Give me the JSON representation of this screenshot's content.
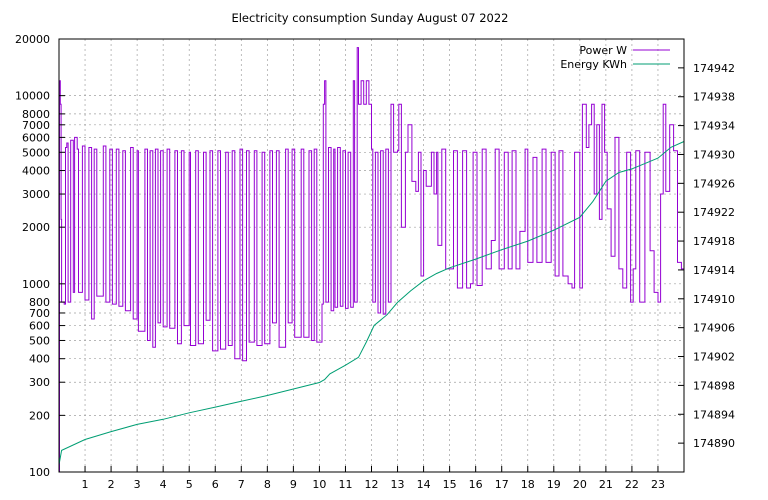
{
  "chart_data": {
    "type": "line",
    "title": "Electricity consumption Sunday August 07 2022",
    "xlabel": "",
    "ylabel": "",
    "y2label": "",
    "xlim": [
      0,
      24
    ],
    "ylim": [
      100,
      20000
    ],
    "y_scale": "log",
    "y2lim": [
      174886,
      174946
    ],
    "grid": true,
    "legend_position": "top-right",
    "x_ticks": [
      1,
      2,
      3,
      4,
      5,
      6,
      7,
      8,
      9,
      10,
      11,
      12,
      13,
      14,
      15,
      16,
      17,
      18,
      19,
      20,
      21,
      22,
      23
    ],
    "y_ticks": [
      100,
      200,
      300,
      400,
      500,
      600,
      700,
      800,
      1000,
      2000,
      3000,
      4000,
      5000,
      6000,
      7000,
      8000,
      10000,
      20000
    ],
    "y2_ticks": [
      174890,
      174894,
      174898,
      174902,
      174906,
      174910,
      174914,
      174918,
      174922,
      174926,
      174930,
      174934,
      174938,
      174942
    ],
    "colors": {
      "power": "#9400d3",
      "energy": "#009e73"
    },
    "series": [
      {
        "name": "Power W",
        "axis": "left",
        "points": [
          [
            0.0,
            100
          ],
          [
            0.02,
            12000
          ],
          [
            0.05,
            9000
          ],
          [
            0.08,
            2200
          ],
          [
            0.1,
            800
          ],
          [
            0.2,
            780
          ],
          [
            0.25,
            5300
          ],
          [
            0.3,
            5600
          ],
          [
            0.35,
            800
          ],
          [
            0.45,
            5800
          ],
          [
            0.55,
            900
          ],
          [
            0.6,
            6000
          ],
          [
            0.7,
            5200
          ],
          [
            0.75,
            900
          ],
          [
            0.9,
            5400
          ],
          [
            1.0,
            820
          ],
          [
            1.15,
            5300
          ],
          [
            1.25,
            650
          ],
          [
            1.35,
            5200
          ],
          [
            1.45,
            860
          ],
          [
            1.7,
            5400
          ],
          [
            1.8,
            800
          ],
          [
            1.95,
            5200
          ],
          [
            2.05,
            780
          ],
          [
            2.2,
            5200
          ],
          [
            2.3,
            760
          ],
          [
            2.45,
            5100
          ],
          [
            2.55,
            720
          ],
          [
            2.75,
            5300
          ],
          [
            2.85,
            650
          ],
          [
            3.0,
            5100
          ],
          [
            3.05,
            560
          ],
          [
            3.3,
            5200
          ],
          [
            3.4,
            500
          ],
          [
            3.5,
            5100
          ],
          [
            3.6,
            460
          ],
          [
            3.7,
            5200
          ],
          [
            3.8,
            620
          ],
          [
            3.9,
            5100
          ],
          [
            4.0,
            590
          ],
          [
            4.15,
            5200
          ],
          [
            4.25,
            580
          ],
          [
            4.45,
            5100
          ],
          [
            4.55,
            480
          ],
          [
            4.7,
            5100
          ],
          [
            4.8,
            600
          ],
          [
            5.0,
            5000
          ],
          [
            5.05,
            470
          ],
          [
            5.25,
            5100
          ],
          [
            5.35,
            480
          ],
          [
            5.55,
            5000
          ],
          [
            5.65,
            640
          ],
          [
            5.8,
            5100
          ],
          [
            5.9,
            440
          ],
          [
            6.1,
            5100
          ],
          [
            6.2,
            450
          ],
          [
            6.4,
            5000
          ],
          [
            6.5,
            470
          ],
          [
            6.65,
            5100
          ],
          [
            6.75,
            400
          ],
          [
            6.95,
            5200
          ],
          [
            7.05,
            390
          ],
          [
            7.2,
            5100
          ],
          [
            7.3,
            490
          ],
          [
            7.5,
            5100
          ],
          [
            7.6,
            470
          ],
          [
            7.8,
            5000
          ],
          [
            7.9,
            480
          ],
          [
            8.1,
            5100
          ],
          [
            8.2,
            620
          ],
          [
            8.35,
            5100
          ],
          [
            8.45,
            460
          ],
          [
            8.7,
            5200
          ],
          [
            8.8,
            620
          ],
          [
            8.95,
            5200
          ],
          [
            9.05,
            520
          ],
          [
            9.3,
            5200
          ],
          [
            9.4,
            520
          ],
          [
            9.6,
            5100
          ],
          [
            9.7,
            500
          ],
          [
            9.8,
            5200
          ],
          [
            9.9,
            490
          ],
          [
            10.1,
            780
          ],
          [
            10.15,
            9000
          ],
          [
            10.2,
            12000
          ],
          [
            10.25,
            800
          ],
          [
            10.35,
            5300
          ],
          [
            10.45,
            720
          ],
          [
            10.55,
            5200
          ],
          [
            10.6,
            750
          ],
          [
            10.7,
            5300
          ],
          [
            10.8,
            760
          ],
          [
            10.9,
            5100
          ],
          [
            11.0,
            740
          ],
          [
            11.1,
            5000
          ],
          [
            11.2,
            750
          ],
          [
            11.3,
            12000
          ],
          [
            11.35,
            800
          ],
          [
            11.45,
            18000
          ],
          [
            11.5,
            9000
          ],
          [
            11.6,
            12000
          ],
          [
            11.7,
            9000
          ],
          [
            11.8,
            12000
          ],
          [
            11.9,
            9000
          ],
          [
            12.0,
            5200
          ],
          [
            12.05,
            800
          ],
          [
            12.15,
            5000
          ],
          [
            12.25,
            700
          ],
          [
            12.35,
            5100
          ],
          [
            12.45,
            690
          ],
          [
            12.55,
            5200
          ],
          [
            12.65,
            800
          ],
          [
            12.75,
            9000
          ],
          [
            12.85,
            5000
          ],
          [
            13.0,
            5100
          ],
          [
            13.05,
            9000
          ],
          [
            13.15,
            2000
          ],
          [
            13.3,
            5000
          ],
          [
            13.4,
            7000
          ],
          [
            13.55,
            3500
          ],
          [
            13.7,
            3100
          ],
          [
            13.8,
            5000
          ],
          [
            13.9,
            1100
          ],
          [
            14.0,
            4000
          ],
          [
            14.1,
            3300
          ],
          [
            14.3,
            5000
          ],
          [
            14.4,
            3000
          ],
          [
            14.5,
            5000
          ],
          [
            14.55,
            1600
          ],
          [
            14.7,
            5200
          ],
          [
            14.85,
            1200
          ],
          [
            15.0,
            1200
          ],
          [
            15.15,
            5100
          ],
          [
            15.3,
            950
          ],
          [
            15.5,
            5100
          ],
          [
            15.65,
            950
          ],
          [
            15.8,
            1000
          ],
          [
            15.9,
            5000
          ],
          [
            16.05,
            980
          ],
          [
            16.25,
            5200
          ],
          [
            16.4,
            1200
          ],
          [
            16.6,
            1700
          ],
          [
            16.75,
            5200
          ],
          [
            16.9,
            1200
          ],
          [
            17.1,
            5000
          ],
          [
            17.25,
            1200
          ],
          [
            17.4,
            5100
          ],
          [
            17.55,
            1200
          ],
          [
            17.7,
            1900
          ],
          [
            17.9,
            5200
          ],
          [
            18.0,
            1300
          ],
          [
            18.2,
            4700
          ],
          [
            18.35,
            1300
          ],
          [
            18.55,
            5200
          ],
          [
            18.7,
            1300
          ],
          [
            18.9,
            5000
          ],
          [
            19.05,
            1100
          ],
          [
            19.2,
            5100
          ],
          [
            19.35,
            1100
          ],
          [
            19.55,
            1000
          ],
          [
            19.7,
            950
          ],
          [
            19.8,
            5000
          ],
          [
            20.0,
            950
          ],
          [
            20.1,
            9000
          ],
          [
            20.25,
            5300
          ],
          [
            20.35,
            7000
          ],
          [
            20.45,
            9000
          ],
          [
            20.55,
            3000
          ],
          [
            20.65,
            7000
          ],
          [
            20.75,
            2200
          ],
          [
            20.85,
            9000
          ],
          [
            20.95,
            5000
          ],
          [
            21.05,
            2500
          ],
          [
            21.2,
            1400
          ],
          [
            21.35,
            6000
          ],
          [
            21.5,
            1200
          ],
          [
            21.65,
            950
          ],
          [
            21.8,
            5000
          ],
          [
            21.95,
            800
          ],
          [
            22.05,
            1200
          ],
          [
            22.15,
            5100
          ],
          [
            22.3,
            800
          ],
          [
            22.5,
            5000
          ],
          [
            22.7,
            1500
          ],
          [
            22.85,
            900
          ],
          [
            23.0,
            800
          ],
          [
            23.1,
            3000
          ],
          [
            23.2,
            9000
          ],
          [
            23.3,
            3100
          ],
          [
            23.45,
            7000
          ],
          [
            23.6,
            5100
          ],
          [
            23.75,
            1300
          ],
          [
            23.9,
            1200
          ],
          [
            24.0,
            1200
          ]
        ]
      },
      {
        "name": "Energy KWh",
        "axis": "right",
        "points": [
          [
            0.0,
            174887.0
          ],
          [
            0.1,
            174889.0
          ],
          [
            1.0,
            174890.5
          ],
          [
            2.0,
            174891.6
          ],
          [
            3.0,
            174892.6
          ],
          [
            4.0,
            174893.3
          ],
          [
            5.0,
            174894.2
          ],
          [
            6.0,
            174895.0
          ],
          [
            7.0,
            174895.8
          ],
          [
            8.0,
            174896.6
          ],
          [
            9.0,
            174897.5
          ],
          [
            10.0,
            174898.4
          ],
          [
            10.2,
            174898.8
          ],
          [
            10.4,
            174899.6
          ],
          [
            11.0,
            174900.8
          ],
          [
            11.5,
            174901.9
          ],
          [
            11.8,
            174904.0
          ],
          [
            12.1,
            174906.3
          ],
          [
            12.6,
            174907.8
          ],
          [
            13.0,
            174909.5
          ],
          [
            13.5,
            174911.1
          ],
          [
            14.0,
            174912.5
          ],
          [
            14.5,
            174913.5
          ],
          [
            15.0,
            174914.3
          ],
          [
            16.0,
            174915.5
          ],
          [
            17.0,
            174916.8
          ],
          [
            18.0,
            174918.0
          ],
          [
            19.0,
            174919.5
          ],
          [
            20.0,
            174921.3
          ],
          [
            20.5,
            174923.5
          ],
          [
            21.0,
            174926.3
          ],
          [
            21.5,
            174927.5
          ],
          [
            22.0,
            174928.0
          ],
          [
            23.0,
            174929.5
          ],
          [
            23.5,
            174931.0
          ],
          [
            24.0,
            174931.8
          ]
        ]
      }
    ]
  }
}
